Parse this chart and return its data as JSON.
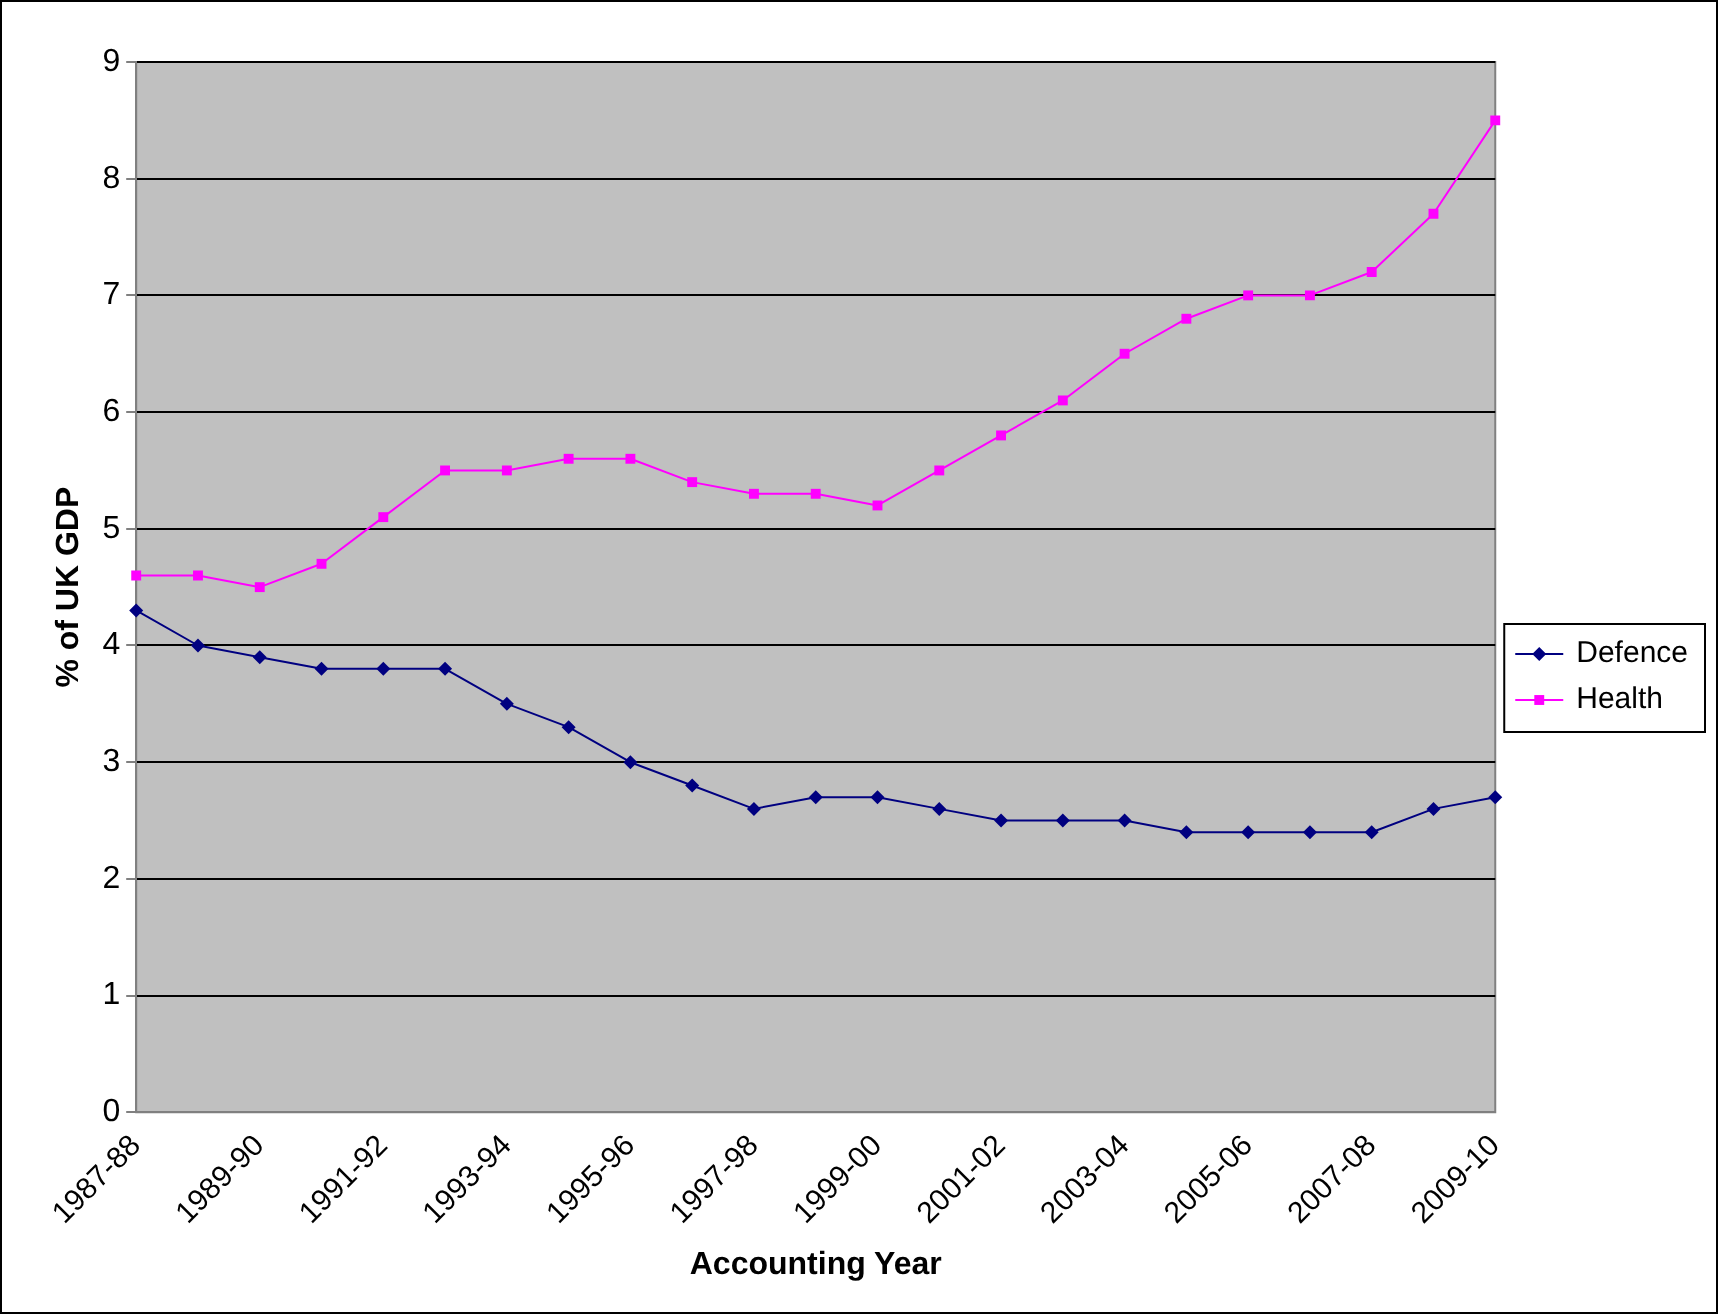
{
  "chart_data": {
    "type": "line",
    "xlabel": "Accounting Year",
    "ylabel": "% of UK GDP",
    "categories": [
      "1987-88",
      null,
      "1989-90",
      null,
      "1991-92",
      null,
      "1993-94",
      null,
      "1995-96",
      null,
      "1997-98",
      null,
      "1999-00",
      null,
      "2001-02",
      null,
      "2003-04",
      null,
      "2005-06",
      null,
      "2007-08",
      null,
      "2009-10"
    ],
    "series": [
      {
        "name": "Defence",
        "color": "#000080",
        "marker": "diamond",
        "values": [
          4.3,
          4.0,
          3.9,
          3.8,
          3.8,
          3.8,
          3.5,
          3.3,
          3.0,
          2.8,
          2.6,
          2.7,
          2.7,
          2.6,
          2.5,
          2.5,
          2.5,
          2.4,
          2.4,
          2.4,
          2.4,
          2.6,
          2.7
        ]
      },
      {
        "name": "Health",
        "color": "#ff00ff",
        "marker": "square",
        "values": [
          4.6,
          4.6,
          4.5,
          4.7,
          5.1,
          5.5,
          5.5,
          5.6,
          5.6,
          5.4,
          5.3,
          5.3,
          5.2,
          5.5,
          5.8,
          6.1,
          6.5,
          6.8,
          7.0,
          7.0,
          7.2,
          7.7,
          8.5
        ]
      }
    ],
    "ylim": [
      0,
      9
    ],
    "yticks": [
      0,
      1,
      2,
      3,
      4,
      5,
      6,
      7,
      8,
      9
    ],
    "grid": "y",
    "legend": "right"
  }
}
